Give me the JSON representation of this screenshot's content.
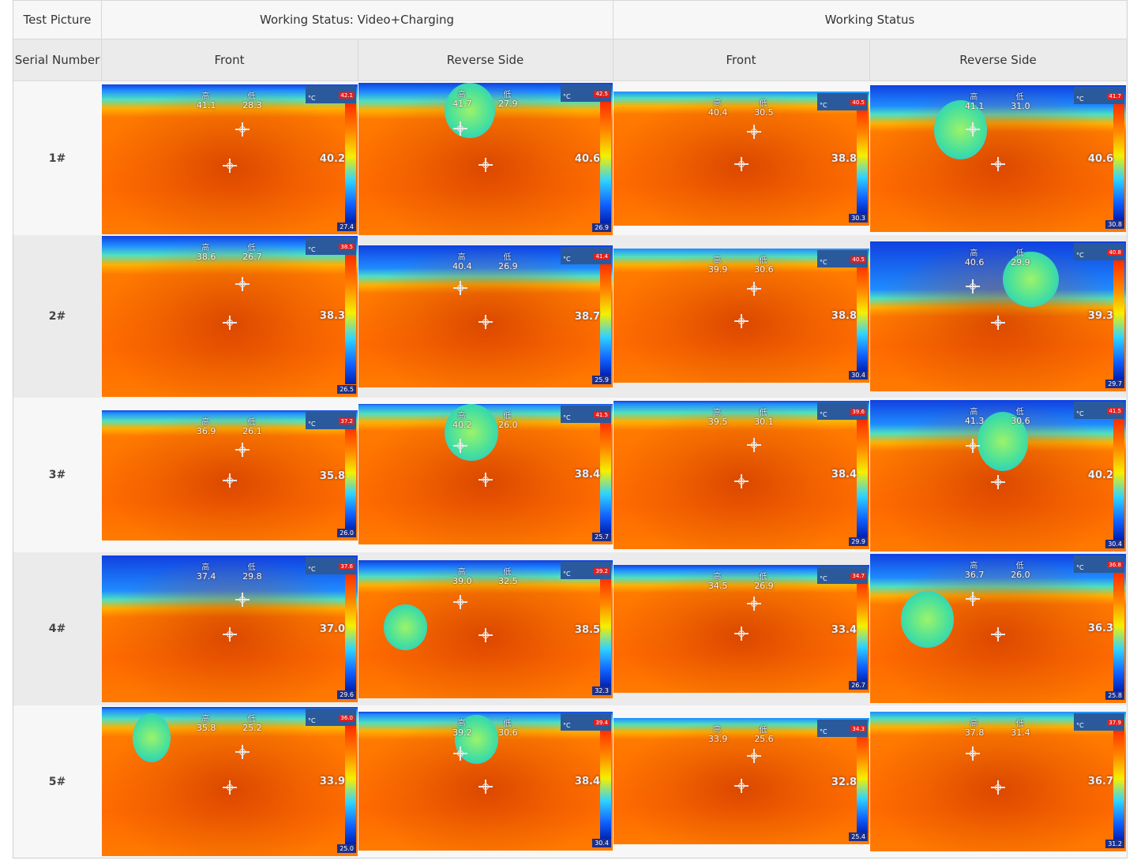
{
  "header": {
    "test_picture": "Test Picture",
    "group_left": "Working Status: Video+Charging",
    "group_right": "Working Status",
    "serial_number": "Serial Number",
    "front": "Front",
    "reverse": "Reverse Side"
  },
  "legend": {
    "high": "高",
    "low": "低",
    "unit": "°C"
  },
  "rows": [
    {
      "serial": "1#",
      "cells": [
        {
          "high": "41.1",
          "low": "28.3",
          "center": "40.2",
          "max": "42.1",
          "min": "27.4"
        },
        {
          "high": "41.7",
          "low": "27.9",
          "center": "40.6",
          "max": "42.5",
          "min": "26.9"
        },
        {
          "high": "40.4",
          "low": "30.5",
          "center": "38.8",
          "max": "40.5",
          "min": "30.3"
        },
        {
          "high": "41.1",
          "low": "31.0",
          "center": "40.6",
          "max": "41.7",
          "min": "30.8"
        }
      ]
    },
    {
      "serial": "2#",
      "cells": [
        {
          "high": "38.6",
          "low": "26.7",
          "center": "38.3",
          "max": "38.5",
          "min": "26.5"
        },
        {
          "high": "40.4",
          "low": "26.9",
          "center": "38.7",
          "max": "41.4",
          "min": "25.9"
        },
        {
          "high": "39.9",
          "low": "30.6",
          "center": "38.8",
          "max": "40.5",
          "min": "30.4"
        },
        {
          "high": "40.6",
          "low": "29.9",
          "center": "39.3",
          "max": "40.8",
          "min": "29.7"
        }
      ]
    },
    {
      "serial": "3#",
      "cells": [
        {
          "high": "36.9",
          "low": "26.1",
          "center": "35.8",
          "max": "37.2",
          "min": "26.0"
        },
        {
          "high": "40.2",
          "low": "26.0",
          "center": "38.4",
          "max": "41.5",
          "min": "25.7"
        },
        {
          "high": "39.5",
          "low": "30.1",
          "center": "38.4",
          "max": "39.6",
          "min": "29.9"
        },
        {
          "high": "41.3",
          "low": "30.6",
          "center": "40.2",
          "max": "41.5",
          "min": "30.4"
        }
      ]
    },
    {
      "serial": "4#",
      "cells": [
        {
          "high": "37.4",
          "low": "29.8",
          "center": "37.0",
          "max": "37.6",
          "min": "29.6"
        },
        {
          "high": "39.0",
          "low": "32.5",
          "center": "38.5",
          "max": "39.2",
          "min": "32.3"
        },
        {
          "high": "34.5",
          "low": "26.9",
          "center": "33.4",
          "max": "34.7",
          "min": "26.7"
        },
        {
          "high": "36.7",
          "low": "26.0",
          "center": "36.3",
          "max": "36.8",
          "min": "25.8"
        }
      ]
    },
    {
      "serial": "5#",
      "cells": [
        {
          "high": "35.8",
          "low": "25.2",
          "center": "33.9",
          "max": "36.0",
          "min": "25.0"
        },
        {
          "high": "39.2",
          "low": "30.6",
          "center": "38.4",
          "max": "39.4",
          "min": "30.4"
        },
        {
          "high": "33.9",
          "low": "25.6",
          "center": "32.8",
          "max": "34.3",
          "min": "25.4"
        },
        {
          "high": "37.8",
          "low": "31.4",
          "center": "36.7",
          "max": "37.9",
          "min": "31.2"
        }
      ]
    }
  ]
}
